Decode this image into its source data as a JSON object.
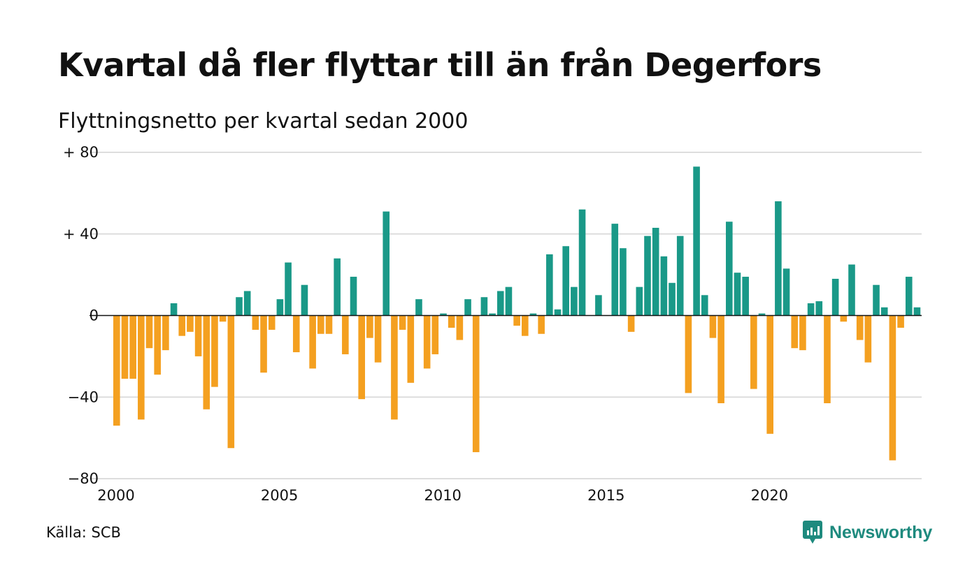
{
  "title": "Kvartal då fler flyttar till än från Degerfors",
  "subtitle": "Flyttningsnetto per kvartal sedan 2000",
  "source": "Källa: SCB",
  "brand": {
    "name": "Newsworthy",
    "icon": "newsworthy-logo-icon",
    "color": "#1e8a7e"
  },
  "colors": {
    "positive": "#1a9988",
    "negative": "#f4a020",
    "grid": "#dddddd",
    "zero": "#111111"
  },
  "chart_data": {
    "type": "bar",
    "title": "Kvartal då fler flyttar till än från Degerfors",
    "subtitle": "Flyttningsnetto per kvartal sedan 2000",
    "xlabel": "",
    "ylabel": "",
    "ylim": [
      -80,
      80
    ],
    "y_ticks": [
      80,
      40,
      0,
      -40,
      -80
    ],
    "y_tick_labels": [
      "+ 80",
      "+ 40",
      "0",
      "−40",
      "−80"
    ],
    "x_ticks": [
      "2000",
      "2005",
      "2010",
      "2015",
      "2020"
    ],
    "grid": true,
    "start": "2000 Q1",
    "period": "quarter",
    "values": [
      -54,
      -31,
      -31,
      -51,
      -16,
      -29,
      -17,
      6,
      -10,
      -8,
      -20,
      -46,
      -35,
      -3,
      -65,
      9,
      12,
      -7,
      -28,
      -7,
      8,
      26,
      -18,
      15,
      -26,
      -9,
      -9,
      28,
      -19,
      19,
      -41,
      -11,
      -23,
      51,
      -51,
      -7,
      -33,
      8,
      -26,
      -19,
      1,
      -6,
      -12,
      8,
      -67,
      9,
      1,
      12,
      14,
      -5,
      -10,
      1,
      -9,
      30,
      3,
      34,
      14,
      52,
      0,
      10,
      0,
      45,
      33,
      -8,
      14,
      39,
      43,
      29,
      16,
      39,
      -38,
      73,
      10,
      -11,
      -43,
      46,
      21,
      19,
      -36,
      1,
      -58,
      56,
      23,
      -16,
      -17,
      6,
      7,
      -43,
      18,
      -3,
      25,
      -12,
      -23,
      15,
      4,
      -71,
      -6,
      19,
      4
    ]
  }
}
